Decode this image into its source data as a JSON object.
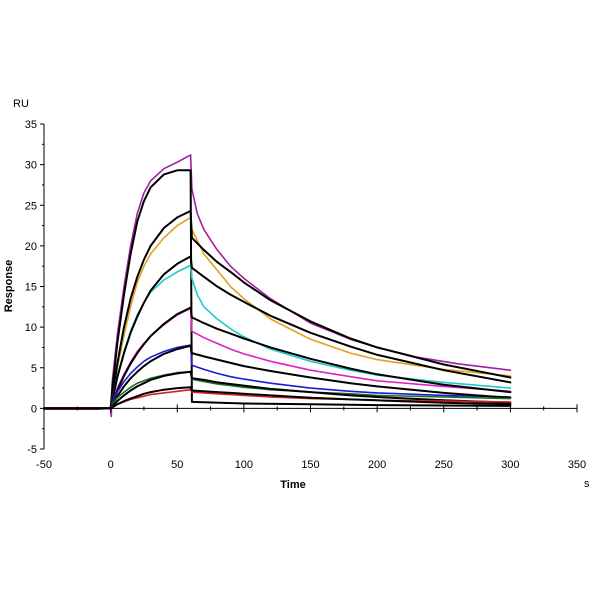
{
  "chart_data": {
    "type": "line",
    "title": "",
    "xlabel": "Time",
    "ylabel": "Response",
    "x_unit": "s",
    "y_unit": "RU",
    "xlim": [
      -50,
      350
    ],
    "ylim": [
      -5,
      35
    ],
    "x_ticks": [
      -50,
      0,
      50,
      100,
      150,
      200,
      250,
      300,
      350
    ],
    "y_ticks": [
      -5,
      0,
      5,
      10,
      15,
      20,
      25,
      30,
      35
    ],
    "grid": false,
    "legend": "none",
    "series": [
      {
        "color": "#a020a0",
        "points": [
          [
            -50,
            -0.1
          ],
          [
            -10,
            -0.1
          ],
          [
            0,
            0
          ],
          [
            0.5,
            -1.0
          ],
          [
            1,
            3
          ],
          [
            5,
            9
          ],
          [
            10,
            15
          ],
          [
            15,
            20
          ],
          [
            20,
            24
          ],
          [
            25,
            26.5
          ],
          [
            30,
            28
          ],
          [
            40,
            29.5
          ],
          [
            50,
            30.3
          ],
          [
            60,
            31.2
          ],
          [
            61,
            27
          ],
          [
            65,
            24
          ],
          [
            70,
            22
          ],
          [
            80,
            19.5
          ],
          [
            90,
            17.5
          ],
          [
            100,
            16
          ],
          [
            120,
            13.5
          ],
          [
            150,
            10.5
          ],
          [
            180,
            8.5
          ],
          [
            200,
            7.5
          ],
          [
            230,
            6.3
          ],
          [
            260,
            5.5
          ],
          [
            300,
            4.7
          ]
        ]
      },
      {
        "color": "#000000",
        "points": [
          [
            -50,
            0
          ],
          [
            0,
            0
          ],
          [
            1,
            2
          ],
          [
            5,
            8
          ],
          [
            10,
            14
          ],
          [
            15,
            19
          ],
          [
            20,
            23
          ],
          [
            25,
            25.5
          ],
          [
            30,
            27.2
          ],
          [
            40,
            28.8
          ],
          [
            50,
            29.3
          ],
          [
            60,
            29.3
          ],
          [
            61,
            0.8
          ],
          [
            100,
            0.6
          ],
          [
            150,
            0.5
          ],
          [
            200,
            0.4
          ],
          [
            250,
            0.35
          ],
          [
            300,
            0.3
          ]
        ]
      },
      {
        "color": "#e0a020",
        "points": [
          [
            -50,
            0
          ],
          [
            0,
            0
          ],
          [
            1,
            1
          ],
          [
            5,
            5
          ],
          [
            10,
            9
          ],
          [
            15,
            12.5
          ],
          [
            20,
            15.5
          ],
          [
            25,
            17.5
          ],
          [
            30,
            19
          ],
          [
            40,
            21
          ],
          [
            50,
            22.5
          ],
          [
            60,
            23.5
          ],
          [
            61,
            22
          ],
          [
            70,
            19
          ],
          [
            80,
            17
          ],
          [
            90,
            15
          ],
          [
            100,
            13.5
          ],
          [
            120,
            11
          ],
          [
            150,
            8.5
          ],
          [
            180,
            6.8
          ],
          [
            200,
            6
          ],
          [
            250,
            4.8
          ],
          [
            300,
            4
          ]
        ]
      },
      {
        "color": "#000000",
        "points": [
          [
            -50,
            0
          ],
          [
            0,
            0
          ],
          [
            1,
            1
          ],
          [
            5,
            5.5
          ],
          [
            10,
            10
          ],
          [
            15,
            13.5
          ],
          [
            20,
            16.2
          ],
          [
            25,
            18.3
          ],
          [
            30,
            20
          ],
          [
            40,
            22.2
          ],
          [
            50,
            23.5
          ],
          [
            60,
            24.3
          ],
          [
            61,
            21
          ],
          [
            70,
            19.5
          ],
          [
            80,
            18
          ],
          [
            90,
            16.8
          ],
          [
            100,
            15.5
          ],
          [
            120,
            13.3
          ],
          [
            150,
            10.7
          ],
          [
            180,
            8.6
          ],
          [
            200,
            7.5
          ],
          [
            250,
            5.4
          ],
          [
            300,
            3.8
          ]
        ]
      },
      {
        "color": "#20c8c8",
        "points": [
          [
            -50,
            0
          ],
          [
            0,
            0
          ],
          [
            1,
            1
          ],
          [
            5,
            4
          ],
          [
            10,
            7
          ],
          [
            15,
            9.5
          ],
          [
            20,
            11.5
          ],
          [
            25,
            13
          ],
          [
            30,
            14.3
          ],
          [
            40,
            15.8
          ],
          [
            50,
            16.8
          ],
          [
            60,
            17.6
          ],
          [
            61,
            16
          ],
          [
            65,
            14
          ],
          [
            70,
            12.5
          ],
          [
            80,
            11
          ],
          [
            90,
            9.8
          ],
          [
            100,
            8.8
          ],
          [
            120,
            7.3
          ],
          [
            150,
            5.8
          ],
          [
            180,
            4.7
          ],
          [
            200,
            4.1
          ],
          [
            250,
            3.2
          ],
          [
            300,
            2.5
          ]
        ]
      },
      {
        "color": "#000000",
        "points": [
          [
            -50,
            0
          ],
          [
            0,
            0
          ],
          [
            1,
            0.8
          ],
          [
            5,
            3.8
          ],
          [
            10,
            6.8
          ],
          [
            15,
            9.3
          ],
          [
            20,
            11.3
          ],
          [
            25,
            13
          ],
          [
            30,
            14.5
          ],
          [
            40,
            16.5
          ],
          [
            50,
            17.8
          ],
          [
            60,
            18.7
          ],
          [
            61,
            17.3
          ],
          [
            70,
            16.2
          ],
          [
            80,
            15
          ],
          [
            90,
            14
          ],
          [
            100,
            13.1
          ],
          [
            120,
            11.4
          ],
          [
            150,
            9.3
          ],
          [
            180,
            7.6
          ],
          [
            200,
            6.6
          ],
          [
            250,
            4.7
          ],
          [
            300,
            3.2
          ]
        ]
      },
      {
        "color": "#e020c8",
        "points": [
          [
            -50,
            0
          ],
          [
            0,
            0
          ],
          [
            1,
            0.5
          ],
          [
            5,
            2.5
          ],
          [
            10,
            4.2
          ],
          [
            15,
            5.7
          ],
          [
            20,
            7
          ],
          [
            25,
            8
          ],
          [
            30,
            8.9
          ],
          [
            40,
            10.3
          ],
          [
            50,
            11.5
          ],
          [
            60,
            12.3
          ],
          [
            61,
            9.5
          ],
          [
            70,
            8.7
          ],
          [
            80,
            8
          ],
          [
            90,
            7.3
          ],
          [
            100,
            6.7
          ],
          [
            120,
            5.8
          ],
          [
            150,
            4.7
          ],
          [
            180,
            3.9
          ],
          [
            200,
            3.4
          ],
          [
            250,
            2.7
          ],
          [
            300,
            2.1
          ]
        ]
      },
      {
        "color": "#000000",
        "points": [
          [
            -50,
            0
          ],
          [
            0,
            0
          ],
          [
            1,
            0.4
          ],
          [
            5,
            2.2
          ],
          [
            10,
            4
          ],
          [
            15,
            5.5
          ],
          [
            20,
            6.8
          ],
          [
            25,
            7.9
          ],
          [
            30,
            8.9
          ],
          [
            40,
            10.4
          ],
          [
            50,
            11.6
          ],
          [
            60,
            12.4
          ],
          [
            61,
            11.2
          ],
          [
            70,
            10.5
          ],
          [
            80,
            9.8
          ],
          [
            90,
            9.2
          ],
          [
            100,
            8.6
          ],
          [
            120,
            7.5
          ],
          [
            150,
            6.1
          ],
          [
            180,
            4.9
          ],
          [
            200,
            4.2
          ],
          [
            250,
            2.9
          ],
          [
            300,
            2
          ]
        ]
      },
      {
        "color": "#1a1adc",
        "points": [
          [
            -50,
            0
          ],
          [
            0,
            0
          ],
          [
            1,
            0.5
          ],
          [
            5,
            2
          ],
          [
            10,
            3.3
          ],
          [
            15,
            4.3
          ],
          [
            20,
            5.1
          ],
          [
            25,
            5.8
          ],
          [
            30,
            6.3
          ],
          [
            40,
            7
          ],
          [
            50,
            7.5
          ],
          [
            60,
            7.8
          ],
          [
            61,
            5.3
          ],
          [
            70,
            4.8
          ],
          [
            80,
            4.3
          ],
          [
            90,
            3.9
          ],
          [
            100,
            3.6
          ],
          [
            120,
            3.1
          ],
          [
            150,
            2.5
          ],
          [
            180,
            2.1
          ],
          [
            200,
            1.9
          ],
          [
            250,
            1.6
          ],
          [
            300,
            1.4
          ]
        ]
      },
      {
        "color": "#000000",
        "points": [
          [
            -50,
            0
          ],
          [
            0,
            0
          ],
          [
            1,
            0.3
          ],
          [
            5,
            1.5
          ],
          [
            10,
            2.7
          ],
          [
            15,
            3.7
          ],
          [
            20,
            4.5
          ],
          [
            25,
            5.2
          ],
          [
            30,
            5.8
          ],
          [
            40,
            6.7
          ],
          [
            50,
            7.3
          ],
          [
            60,
            7.7
          ],
          [
            61,
            6.8
          ],
          [
            70,
            6.4
          ],
          [
            80,
            6
          ],
          [
            90,
            5.6
          ],
          [
            100,
            5.2
          ],
          [
            120,
            4.6
          ],
          [
            150,
            3.8
          ],
          [
            180,
            3.1
          ],
          [
            200,
            2.7
          ],
          [
            250,
            1.9
          ],
          [
            300,
            1.3
          ]
        ]
      },
      {
        "color": "#1e6e1e",
        "points": [
          [
            -50,
            0
          ],
          [
            0,
            0
          ],
          [
            1,
            0.4
          ],
          [
            5,
            1.3
          ],
          [
            10,
            2
          ],
          [
            15,
            2.6
          ],
          [
            20,
            3.1
          ],
          [
            25,
            3.4
          ],
          [
            30,
            3.7
          ],
          [
            40,
            4.1
          ],
          [
            50,
            4.4
          ],
          [
            60,
            4.5
          ],
          [
            61,
            3.6
          ],
          [
            70,
            3.3
          ],
          [
            80,
            3
          ],
          [
            90,
            2.8
          ],
          [
            100,
            2.6
          ],
          [
            120,
            2.3
          ],
          [
            150,
            2
          ],
          [
            180,
            1.8
          ],
          [
            200,
            1.6
          ],
          [
            250,
            1.4
          ],
          [
            300,
            1.2
          ]
        ]
      },
      {
        "color": "#000000",
        "points": [
          [
            -50,
            0
          ],
          [
            0,
            0
          ],
          [
            1,
            0.2
          ],
          [
            5,
            0.9
          ],
          [
            10,
            1.6
          ],
          [
            15,
            2.2
          ],
          [
            20,
            2.7
          ],
          [
            25,
            3.1
          ],
          [
            30,
            3.5
          ],
          [
            40,
            4
          ],
          [
            50,
            4.3
          ],
          [
            60,
            4.5
          ],
          [
            61,
            3.7
          ],
          [
            70,
            3.5
          ],
          [
            80,
            3.2
          ],
          [
            90,
            3
          ],
          [
            100,
            2.8
          ],
          [
            120,
            2.4
          ],
          [
            150,
            2
          ],
          [
            180,
            1.6
          ],
          [
            200,
            1.4
          ],
          [
            250,
            1
          ],
          [
            300,
            0.7
          ]
        ]
      },
      {
        "color": "#d82020",
        "points": [
          [
            -50,
            0
          ],
          [
            0,
            0
          ],
          [
            1,
            0.2
          ],
          [
            5,
            0.5
          ],
          [
            10,
            0.8
          ],
          [
            15,
            1.1
          ],
          [
            20,
            1.3
          ],
          [
            25,
            1.5
          ],
          [
            30,
            1.7
          ],
          [
            40,
            1.9
          ],
          [
            50,
            2.1
          ],
          [
            60,
            2.3
          ],
          [
            61,
            2
          ],
          [
            70,
            1.9
          ],
          [
            80,
            1.8
          ],
          [
            90,
            1.7
          ],
          [
            100,
            1.6
          ],
          [
            120,
            1.4
          ],
          [
            150,
            1.2
          ],
          [
            180,
            1.1
          ],
          [
            200,
            1
          ],
          [
            250,
            0.9
          ],
          [
            300,
            0.8
          ]
        ]
      },
      {
        "color": "#000000",
        "points": [
          [
            -50,
            0
          ],
          [
            0,
            0
          ],
          [
            1,
            0.1
          ],
          [
            5,
            0.5
          ],
          [
            10,
            0.9
          ],
          [
            15,
            1.2
          ],
          [
            20,
            1.5
          ],
          [
            25,
            1.8
          ],
          [
            30,
            2
          ],
          [
            40,
            2.3
          ],
          [
            50,
            2.5
          ],
          [
            60,
            2.6
          ],
          [
            61,
            2.2
          ],
          [
            70,
            2.1
          ],
          [
            80,
            2
          ],
          [
            90,
            1.9
          ],
          [
            100,
            1.8
          ],
          [
            120,
            1.6
          ],
          [
            150,
            1.3
          ],
          [
            180,
            1.1
          ],
          [
            200,
            1
          ],
          [
            250,
            0.7
          ],
          [
            300,
            0.5
          ]
        ]
      }
    ]
  }
}
